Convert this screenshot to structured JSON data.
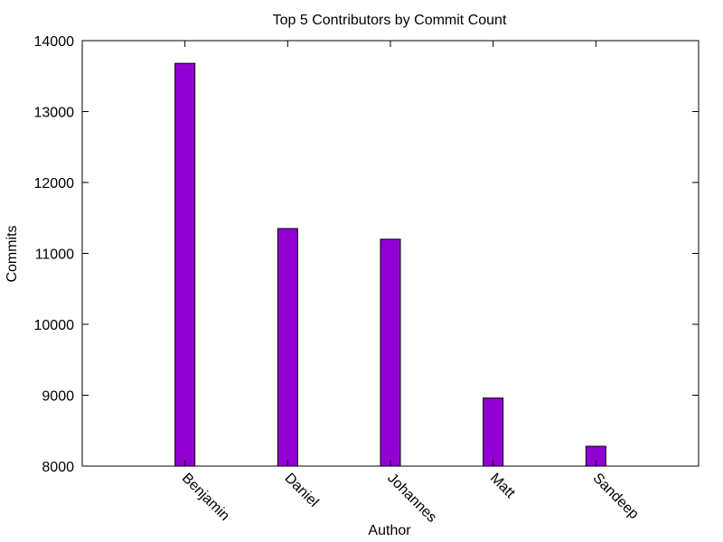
{
  "chart_data": {
    "type": "bar",
    "title": "Top 5 Contributors by Commit Count",
    "xlabel": "Author",
    "ylabel": "Commits",
    "categories": [
      "Benjamin",
      "Daniel",
      "Johannes",
      "Matt",
      "Sandeep"
    ],
    "values": [
      13680,
      11350,
      11200,
      8960,
      8280
    ],
    "ylim": [
      8000,
      14000
    ],
    "yticks": [
      8000,
      9000,
      10000,
      11000,
      12000,
      13000,
      14000
    ],
    "grid": false,
    "legend": "none",
    "bar_color": "#9400d3",
    "bar_edge_color": "#000000"
  }
}
